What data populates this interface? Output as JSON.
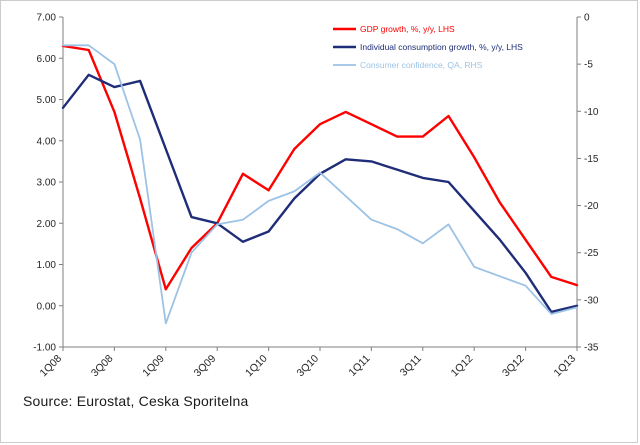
{
  "source_note": "Source: Eurostat, Ceska Sporitelna",
  "chart_data": {
    "type": "line",
    "title": "",
    "xlabel": "",
    "ylabel_left": "",
    "ylabel_right": "",
    "grid": false,
    "legend_position": "top-right",
    "categories": [
      "1Q08",
      "2Q08",
      "3Q08",
      "4Q08",
      "1Q09",
      "2Q09",
      "3Q09",
      "4Q09",
      "1Q10",
      "2Q10",
      "3Q10",
      "4Q10",
      "1Q11",
      "2Q11",
      "3Q11",
      "4Q11",
      "1Q12",
      "2Q12",
      "3Q12",
      "4Q12",
      "1Q13"
    ],
    "x_tick_labels": [
      "1Q08",
      "3Q08",
      "1Q09",
      "3Q09",
      "1Q10",
      "3Q10",
      "1Q11",
      "3Q11",
      "1Q12",
      "3Q12",
      "1Q13"
    ],
    "x_tick_step": 2,
    "left_axis": {
      "min": -1,
      "max": 7,
      "ticks": [
        "7.00",
        "6.00",
        "5.00",
        "4.00",
        "3.00",
        "2.00",
        "1.00",
        "0.00",
        "-1.00"
      ]
    },
    "right_axis": {
      "min": -35,
      "max": 0,
      "ticks": [
        "0",
        "-5",
        "-10",
        "-15",
        "-20",
        "-25",
        "-30",
        "-35"
      ]
    },
    "axis_color": "#7f7f7f",
    "label_color": "#262626",
    "series": [
      {
        "id": "gdp",
        "name": "GDP growth, %, y/y, LHS",
        "axis": "left",
        "color": "#ff0000",
        "width": 2.4,
        "values": [
          6.3,
          6.2,
          4.7,
          2.6,
          0.4,
          1.4,
          2.0,
          3.2,
          2.8,
          3.8,
          4.4,
          4.7,
          4.4,
          4.1,
          4.1,
          4.6,
          3.6,
          2.5,
          1.6,
          0.7,
          0.5
        ]
      },
      {
        "id": "consumption",
        "name": "Individual consumption growth, %, y/y, LHS",
        "axis": "left",
        "color": "#1f2d78",
        "width": 2.4,
        "values": [
          4.8,
          5.6,
          5.3,
          5.45,
          3.8,
          2.15,
          2.0,
          1.55,
          1.8,
          2.6,
          3.2,
          3.55,
          3.5,
          3.3,
          3.1,
          3.0,
          2.3,
          1.6,
          0.8,
          -0.15,
          0.0
        ]
      },
      {
        "id": "confidence",
        "name": "Consumer confidence, QA, RHS",
        "axis": "right",
        "color": "#9cc3e5",
        "width": 1.8,
        "values": [
          -3,
          -3,
          -5,
          -13,
          -32.5,
          -25,
          -22,
          -21.5,
          -19.5,
          -18.5,
          -16.5,
          -19,
          -21.5,
          -22.5,
          -24,
          -22,
          -26.5,
          -27.5,
          -28.5,
          -31.5,
          -30.8
        ]
      }
    ]
  }
}
